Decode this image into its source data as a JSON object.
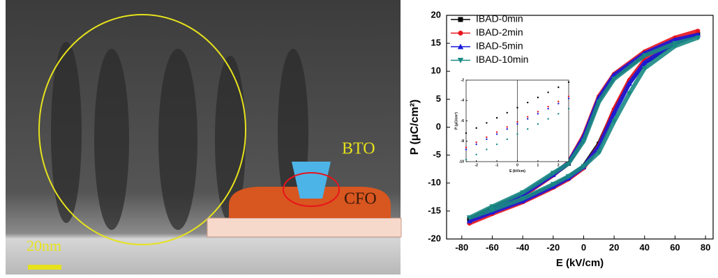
{
  "micrograph": {
    "labels": [
      "BTO",
      "CFO"
    ],
    "scale_bar": "20nm"
  },
  "chart_data": [
    {
      "type": "line",
      "xlabel": "E (kV/cm)",
      "ylabel": "P (μC/cm²)",
      "xlim": [
        -90,
        85
      ],
      "ylim": [
        -20,
        20
      ],
      "xticks": [
        -80,
        -60,
        -40,
        -20,
        0,
        20,
        40,
        60,
        80
      ],
      "yticks": [
        -20,
        -15,
        -10,
        -5,
        0,
        5,
        10,
        15,
        20
      ],
      "legend": "upper left",
      "x": [
        -75,
        -60,
        -40,
        -20,
        -10,
        0,
        10,
        20,
        30,
        40,
        60,
        75,
        60,
        40,
        20,
        10,
        0,
        -10,
        -20,
        -40,
        -60,
        -75
      ],
      "series": [
        {
          "name": "IBAD-0min",
          "color": "#000000",
          "marker": "square",
          "values": [
            -16.5,
            -15,
            -13,
            -10.5,
            -9,
            -7,
            -3,
            3,
            8,
            11.5,
            15,
            16.6,
            15.5,
            13,
            9,
            5,
            -2,
            -6.5,
            -8.5,
            -12,
            -14.5,
            -16.5
          ]
        },
        {
          "name": "IBAD-2min",
          "color": "#e8141c",
          "marker": "circle",
          "values": [
            -17.2,
            -15.5,
            -13.4,
            -10.8,
            -9.3,
            -7.3,
            -3.3,
            3.2,
            8.4,
            12,
            15.6,
            17.2,
            16,
            13.5,
            9.5,
            5.5,
            -1.5,
            -6.3,
            -8.6,
            -12.3,
            -15,
            -17.2
          ]
        },
        {
          "name": "IBAD-5min",
          "color": "#1a1adc",
          "marker": "triangle-up",
          "values": [
            -16.8,
            -15.2,
            -13.2,
            -10.6,
            -9.1,
            -7.1,
            -3.5,
            2.5,
            7.8,
            11.5,
            15.2,
            16.5,
            15.6,
            13.2,
            9.3,
            5.2,
            -1.8,
            -6.4,
            -8.5,
            -12.1,
            -14.8,
            -16.8
          ]
        },
        {
          "name": "IBAD-10min",
          "color": "#1a8a84",
          "marker": "triangle-down",
          "values": [
            -16.2,
            -14.8,
            -12.8,
            -10.2,
            -8.8,
            -7,
            -4.5,
            1,
            6,
            10.5,
            14.5,
            16,
            15,
            12.8,
            8.6,
            4.5,
            -2.5,
            -6.5,
            -8.2,
            -11.7,
            -14.2,
            -16.2
          ]
        }
      ]
    },
    {
      "type": "scatter",
      "xlabel": "E (kV/cm)",
      "ylabel": "P (μC/cm²)",
      "xlim": [
        -2.5,
        2.5
      ],
      "ylim": [
        -10,
        -2
      ],
      "xticks": [
        -2,
        -1,
        0,
        1,
        2
      ],
      "yticks": [
        -10,
        -8,
        -6,
        -4,
        -2
      ],
      "x": [
        -2.5,
        -2,
        -1.5,
        -1,
        -0.5,
        0,
        0.5,
        1,
        1.5,
        2,
        2.5
      ],
      "series": [
        {
          "name": "IBAD-0min",
          "color": "#000000",
          "values": [
            -7.2,
            -6.7,
            -6.2,
            -5.7,
            -5.2,
            -4.7,
            -4.2,
            -3.7,
            -3.2,
            -2.7,
            -2.2
          ]
        },
        {
          "name": "IBAD-2min",
          "color": "#e8141c",
          "values": [
            -8.6,
            -8.1,
            -7.6,
            -7.1,
            -6.6,
            -6.1,
            -5.6,
            -5.1,
            -4.6,
            -4.1,
            -3.6
          ]
        },
        {
          "name": "IBAD-5min",
          "color": "#1a1adc",
          "values": [
            -8.8,
            -8.3,
            -7.8,
            -7.3,
            -6.8,
            -6.3,
            -5.8,
            -5.3,
            -4.8,
            -4.3,
            -3.8
          ]
        },
        {
          "name": "IBAD-10min",
          "color": "#1a8a84",
          "values": [
            -9.8,
            -9.3,
            -8.8,
            -8.3,
            -7.8,
            -7.3,
            -6.8,
            -6.3,
            -5.8,
            -5.3,
            -4.8
          ]
        }
      ]
    }
  ]
}
